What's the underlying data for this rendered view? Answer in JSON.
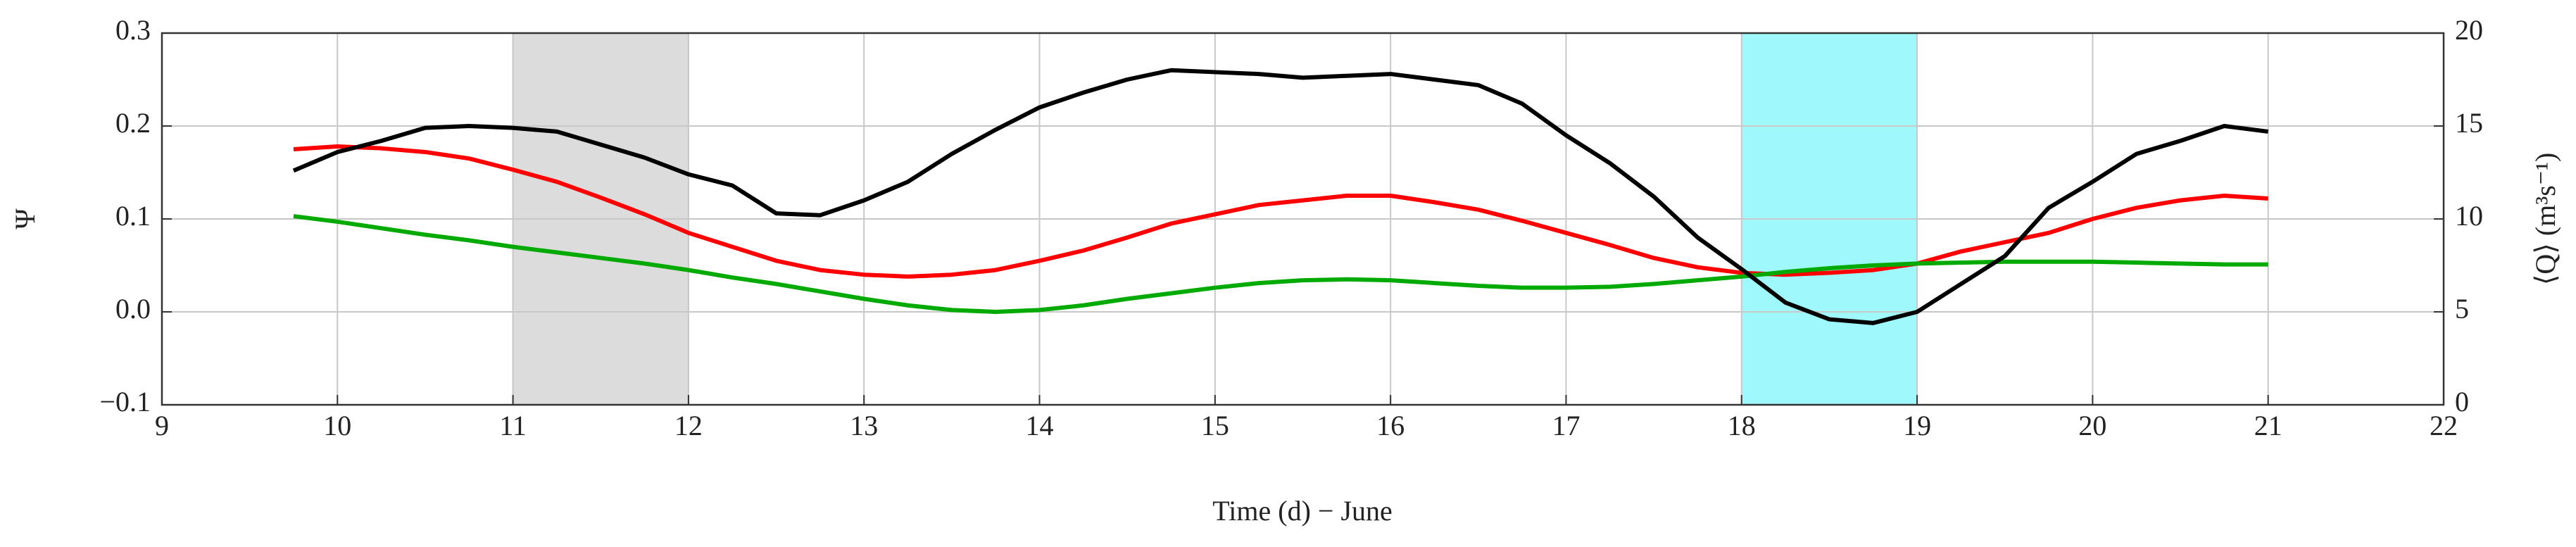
{
  "chart_data": {
    "type": "line",
    "xlabel": "Time (d) − June",
    "ylabel": "Ψ",
    "y2label": "⟨Q⟩ (m³s⁻¹)",
    "xlim": [
      9,
      22
    ],
    "xticks": [
      9,
      10,
      11,
      12,
      13,
      14,
      15,
      16,
      17,
      18,
      19,
      20,
      21,
      22
    ],
    "ylim": [
      -0.1,
      0.3
    ],
    "yticks": [
      {
        "value": -0.1,
        "label": "−0.1"
      },
      {
        "value": 0,
        "label": "0.0"
      },
      0.1,
      0.2,
      0.3
    ],
    "y2lim": [
      0,
      20
    ],
    "y2ticks": [
      0,
      5,
      10,
      15,
      20
    ],
    "grid": true,
    "shaded_regions": [
      {
        "xlim": [
          11,
          12
        ],
        "color": "#dcdcdc"
      },
      {
        "xlim": [
          18,
          19
        ],
        "color": "#9ff8fb"
      }
    ],
    "x": [
      9.75,
      10,
      10.25,
      10.5,
      10.75,
      11,
      11.25,
      11.5,
      11.75,
      12,
      12.25,
      12.5,
      12.75,
      13,
      13.25,
      13.5,
      13.75,
      14,
      14.25,
      14.5,
      14.75,
      15,
      15.25,
      15.5,
      15.75,
      16,
      16.25,
      16.5,
      16.75,
      17,
      17.25,
      17.5,
      17.75,
      18,
      18.25,
      18.5,
      18.75,
      19,
      19.25,
      19.5,
      19.75,
      20,
      20.25,
      20.5,
      20.75,
      21
    ],
    "series": [
      {
        "color": "#ff0000",
        "values": [
          0.175,
          0.178,
          0.176,
          0.172,
          0.165,
          0.153,
          0.14,
          0.123,
          0.105,
          0.085,
          0.07,
          0.055,
          0.045,
          0.04,
          0.038,
          0.04,
          0.045,
          0.055,
          0.066,
          0.08,
          0.095,
          0.105,
          0.115,
          0.12,
          0.125,
          0.125,
          0.118,
          0.11,
          0.098,
          0.085,
          0.072,
          0.058,
          0.048,
          0.042,
          0.04,
          0.042,
          0.045,
          0.052,
          0.065,
          0.075,
          0.085,
          0.1,
          0.112,
          0.12,
          0.125,
          0.122
        ]
      },
      {
        "color": "#00aa00",
        "values": [
          0.103,
          0.097,
          0.09,
          0.083,
          0.077,
          0.07,
          0.064,
          0.058,
          0.052,
          0.045,
          0.037,
          0.03,
          0.022,
          0.014,
          0.007,
          0.002,
          0.0,
          0.002,
          0.007,
          0.014,
          0.02,
          0.026,
          0.031,
          0.034,
          0.035,
          0.034,
          0.031,
          0.028,
          0.026,
          0.026,
          0.027,
          0.03,
          0.034,
          0.038,
          0.043,
          0.047,
          0.05,
          0.052,
          0.053,
          0.054,
          0.054,
          0.054,
          0.053,
          0.052,
          0.051,
          0.051
        ]
      },
      {
        "color": "#000000",
        "axis": "y2",
        "values": [
          12.6,
          13.6,
          14.2,
          14.9,
          15.0,
          14.9,
          14.7,
          14.0,
          13.3,
          12.4,
          11.8,
          10.3,
          10.2,
          11.0,
          12.0,
          13.5,
          14.8,
          16.0,
          16.8,
          17.5,
          18.0,
          17.9,
          17.8,
          17.6,
          17.7,
          17.8,
          17.5,
          17.2,
          16.2,
          14.5,
          13.0,
          11.2,
          9.0,
          7.3,
          5.5,
          4.6,
          4.4,
          5.0,
          6.5,
          8.0,
          10.6,
          12.0,
          13.5,
          14.2,
          15.0,
          14.7
        ]
      }
    ]
  }
}
